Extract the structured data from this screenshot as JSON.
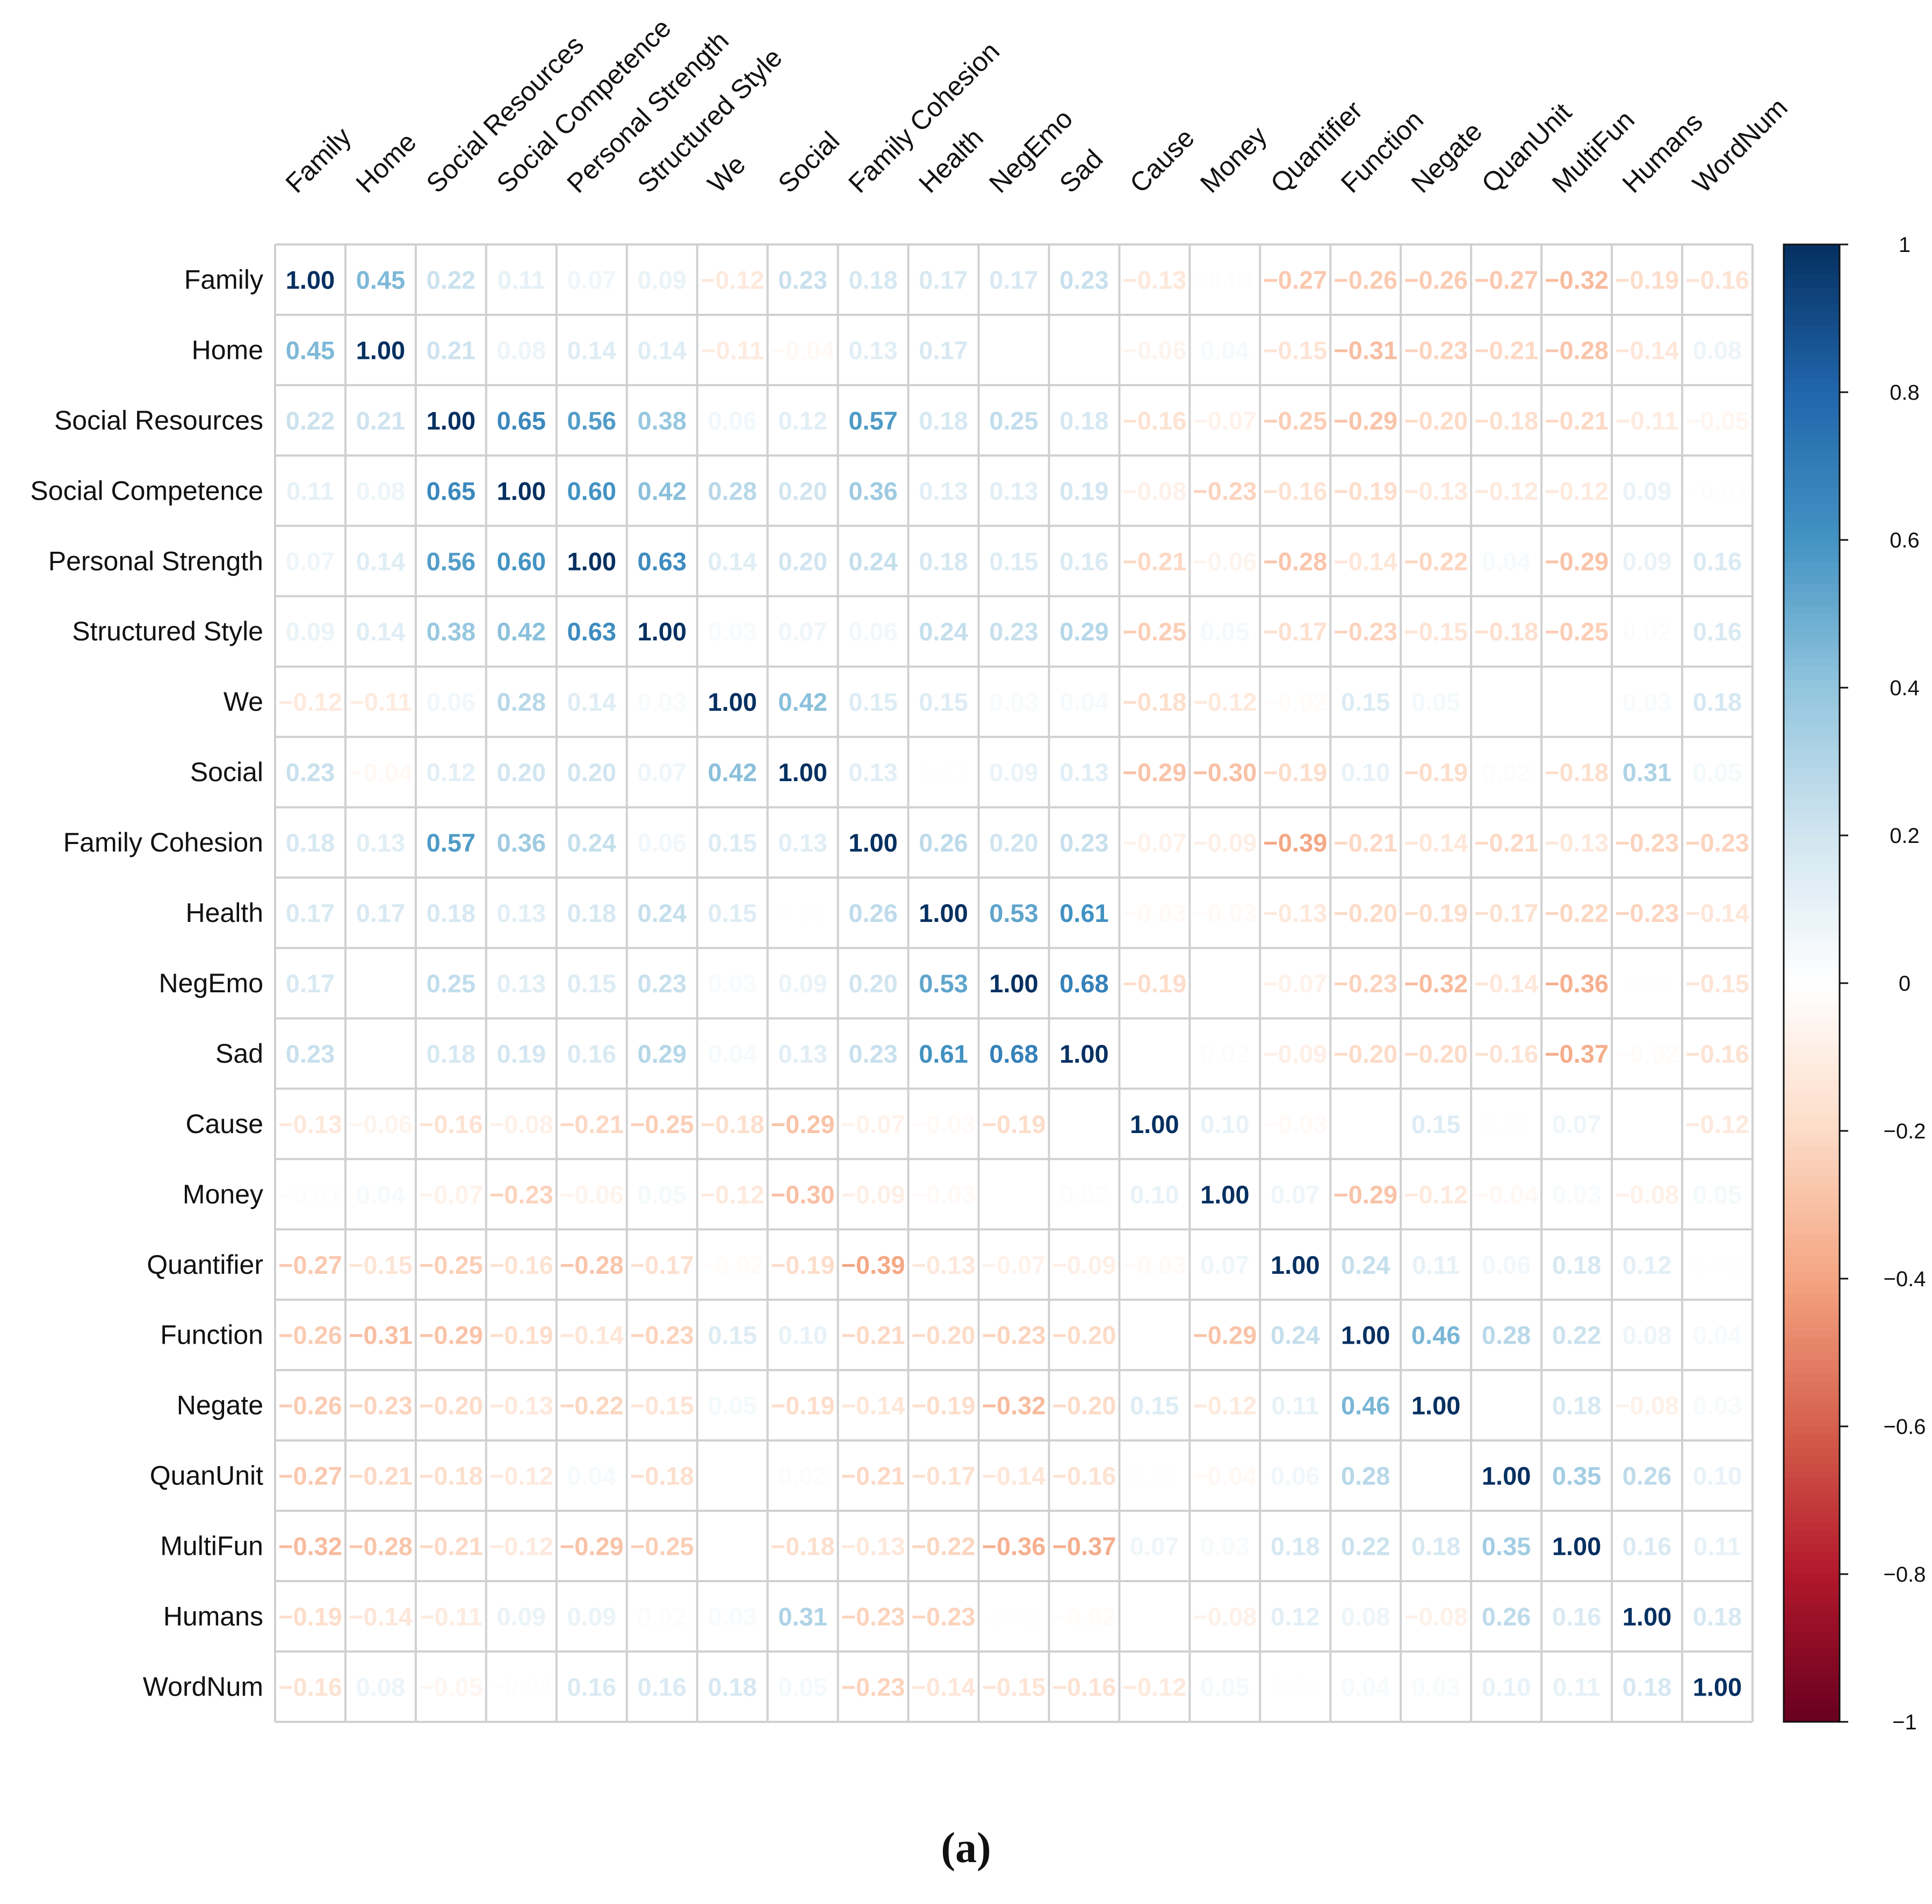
{
  "chart_data": {
    "type": "heatmap",
    "title": "",
    "caption": "(a)",
    "labels": [
      "Family",
      "Home",
      "Social Resources",
      "Social Competence",
      "Personal Strength",
      "Structured Style",
      "We",
      "Social",
      "Family Cohesion",
      "Health",
      "NegEmo",
      "Sad",
      "Cause",
      "Money",
      "Quantifier",
      "Function",
      "Negate",
      "QuanUnit",
      "MultiFun",
      "Humans",
      "WordNum"
    ],
    "values": [
      [
        1.0,
        0.45,
        0.22,
        0.11,
        0.07,
        0.09,
        -0.12,
        0.23,
        0.18,
        0.17,
        0.17,
        0.23,
        -0.13,
        -0.01,
        -0.27,
        -0.26,
        -0.26,
        -0.27,
        -0.32,
        -0.19,
        -0.16
      ],
      [
        0.45,
        1.0,
        0.21,
        0.08,
        0.14,
        0.14,
        -0.11,
        -0.04,
        0.13,
        0.17,
        0.0,
        0.0,
        -0.06,
        0.04,
        -0.15,
        -0.31,
        -0.23,
        -0.21,
        -0.28,
        -0.14,
        0.08
      ],
      [
        0.22,
        0.21,
        1.0,
        0.65,
        0.56,
        0.38,
        0.06,
        0.12,
        0.57,
        0.18,
        0.25,
        0.18,
        -0.16,
        -0.07,
        -0.25,
        -0.29,
        -0.2,
        -0.18,
        -0.21,
        -0.11,
        -0.05
      ],
      [
        0.11,
        0.08,
        0.65,
        1.0,
        0.6,
        0.42,
        0.28,
        0.2,
        0.36,
        0.13,
        0.13,
        0.19,
        -0.08,
        -0.23,
        -0.16,
        -0.19,
        -0.13,
        -0.12,
        -0.12,
        0.09,
        -0.01
      ],
      [
        0.07,
        0.14,
        0.56,
        0.6,
        1.0,
        0.63,
        0.14,
        0.2,
        0.24,
        0.18,
        0.15,
        0.16,
        -0.21,
        -0.06,
        -0.28,
        -0.14,
        -0.22,
        0.04,
        -0.29,
        0.09,
        0.16
      ],
      [
        0.09,
        0.14,
        0.38,
        0.42,
        0.63,
        1.0,
        0.03,
        0.07,
        0.06,
        0.24,
        0.23,
        0.29,
        -0.25,
        0.05,
        -0.17,
        -0.23,
        -0.15,
        -0.18,
        -0.25,
        0.02,
        0.16
      ],
      [
        -0.12,
        -0.11,
        0.06,
        0.28,
        0.14,
        0.03,
        1.0,
        0.42,
        0.15,
        0.15,
        0.03,
        0.04,
        -0.18,
        -0.12,
        -0.02,
        0.15,
        0.05,
        0.0,
        0.0,
        0.03,
        0.18
      ],
      [
        0.23,
        -0.04,
        0.12,
        0.2,
        0.2,
        0.07,
        0.42,
        1.0,
        0.13,
        0.01,
        0.09,
        0.13,
        -0.29,
        -0.3,
        -0.19,
        0.1,
        -0.19,
        0.02,
        -0.18,
        0.31,
        0.05
      ],
      [
        0.18,
        0.13,
        0.57,
        0.36,
        0.24,
        0.06,
        0.15,
        0.13,
        1.0,
        0.26,
        0.2,
        0.23,
        -0.07,
        -0.09,
        -0.39,
        -0.21,
        -0.14,
        -0.21,
        -0.13,
        -0.23,
        -0.23
      ],
      [
        0.17,
        0.17,
        0.18,
        0.13,
        0.18,
        0.24,
        0.15,
        0.01,
        0.26,
        1.0,
        0.53,
        0.61,
        -0.03,
        -0.03,
        -0.13,
        -0.2,
        -0.19,
        -0.17,
        -0.22,
        -0.23,
        -0.14
      ],
      [
        0.17,
        0.0,
        0.25,
        0.13,
        0.15,
        0.23,
        0.03,
        0.09,
        0.2,
        0.53,
        1.0,
        0.68,
        -0.19,
        0.0,
        -0.07,
        -0.23,
        -0.32,
        -0.14,
        -0.36,
        0.01,
        -0.15
      ],
      [
        0.23,
        0.0,
        0.18,
        0.19,
        0.16,
        0.29,
        0.04,
        0.13,
        0.23,
        0.61,
        0.68,
        1.0,
        0.0,
        0.02,
        -0.09,
        -0.2,
        -0.2,
        -0.16,
        -0.37,
        -0.02,
        -0.16
      ],
      [
        -0.13,
        -0.06,
        -0.16,
        -0.08,
        -0.21,
        -0.25,
        -0.18,
        -0.29,
        -0.07,
        -0.03,
        -0.19,
        0.0,
        1.0,
        0.1,
        -0.03,
        0.0,
        0.15,
        0.01,
        0.07,
        0.0,
        -0.12
      ],
      [
        -0.01,
        0.04,
        -0.07,
        -0.23,
        -0.06,
        0.05,
        -0.12,
        -0.3,
        -0.09,
        -0.03,
        0.0,
        0.02,
        0.1,
        1.0,
        0.07,
        -0.29,
        -0.12,
        -0.04,
        0.03,
        -0.08,
        0.05
      ],
      [
        -0.27,
        -0.15,
        -0.25,
        -0.16,
        -0.28,
        -0.17,
        -0.02,
        -0.19,
        -0.39,
        -0.13,
        -0.07,
        -0.09,
        -0.03,
        0.07,
        1.0,
        0.24,
        0.11,
        0.06,
        0.18,
        0.12,
        0.01
      ],
      [
        -0.26,
        -0.31,
        -0.29,
        -0.19,
        -0.14,
        -0.23,
        0.15,
        0.1,
        -0.21,
        -0.2,
        -0.23,
        -0.2,
        0.0,
        -0.29,
        0.24,
        1.0,
        0.46,
        0.28,
        0.22,
        0.08,
        0.04
      ],
      [
        -0.26,
        -0.23,
        -0.2,
        -0.13,
        -0.22,
        -0.15,
        0.05,
        -0.19,
        -0.14,
        -0.19,
        -0.32,
        -0.2,
        0.15,
        -0.12,
        0.11,
        0.46,
        1.0,
        0.0,
        0.18,
        -0.08,
        0.03
      ],
      [
        -0.27,
        -0.21,
        -0.18,
        -0.12,
        0.04,
        -0.18,
        0.0,
        0.02,
        -0.21,
        -0.17,
        -0.14,
        -0.16,
        0.01,
        -0.04,
        0.06,
        0.28,
        0.0,
        1.0,
        0.35,
        0.26,
        0.1
      ],
      [
        -0.32,
        -0.28,
        -0.21,
        -0.12,
        -0.29,
        -0.25,
        0.0,
        -0.18,
        -0.13,
        -0.22,
        -0.36,
        -0.37,
        0.07,
        0.03,
        0.18,
        0.22,
        0.18,
        0.35,
        1.0,
        0.16,
        0.11
      ],
      [
        -0.19,
        -0.14,
        -0.11,
        0.09,
        0.09,
        0.02,
        0.03,
        0.31,
        -0.23,
        -0.23,
        0.01,
        -0.02,
        0.0,
        -0.08,
        0.12,
        0.08,
        -0.08,
        0.26,
        0.16,
        1.0,
        0.18
      ],
      [
        -0.16,
        0.08,
        -0.05,
        -0.01,
        0.16,
        0.16,
        0.18,
        0.05,
        -0.23,
        -0.14,
        -0.15,
        -0.16,
        -0.12,
        0.05,
        0.01,
        0.04,
        0.03,
        0.1,
        0.11,
        0.18,
        1.0
      ]
    ],
    "colorbar": {
      "range": [
        -1,
        1
      ],
      "ticks": [
        1,
        0.8,
        0.6,
        0.4,
        0.2,
        0,
        -0.2,
        -0.4,
        -0.6,
        -0.8,
        -1
      ],
      "tick_labels": [
        "1",
        "0.8",
        "0.6",
        "0.4",
        "0.2",
        "0",
        "−0.2",
        "−0.4",
        "−0.6",
        "−0.8",
        "−1"
      ]
    }
  }
}
